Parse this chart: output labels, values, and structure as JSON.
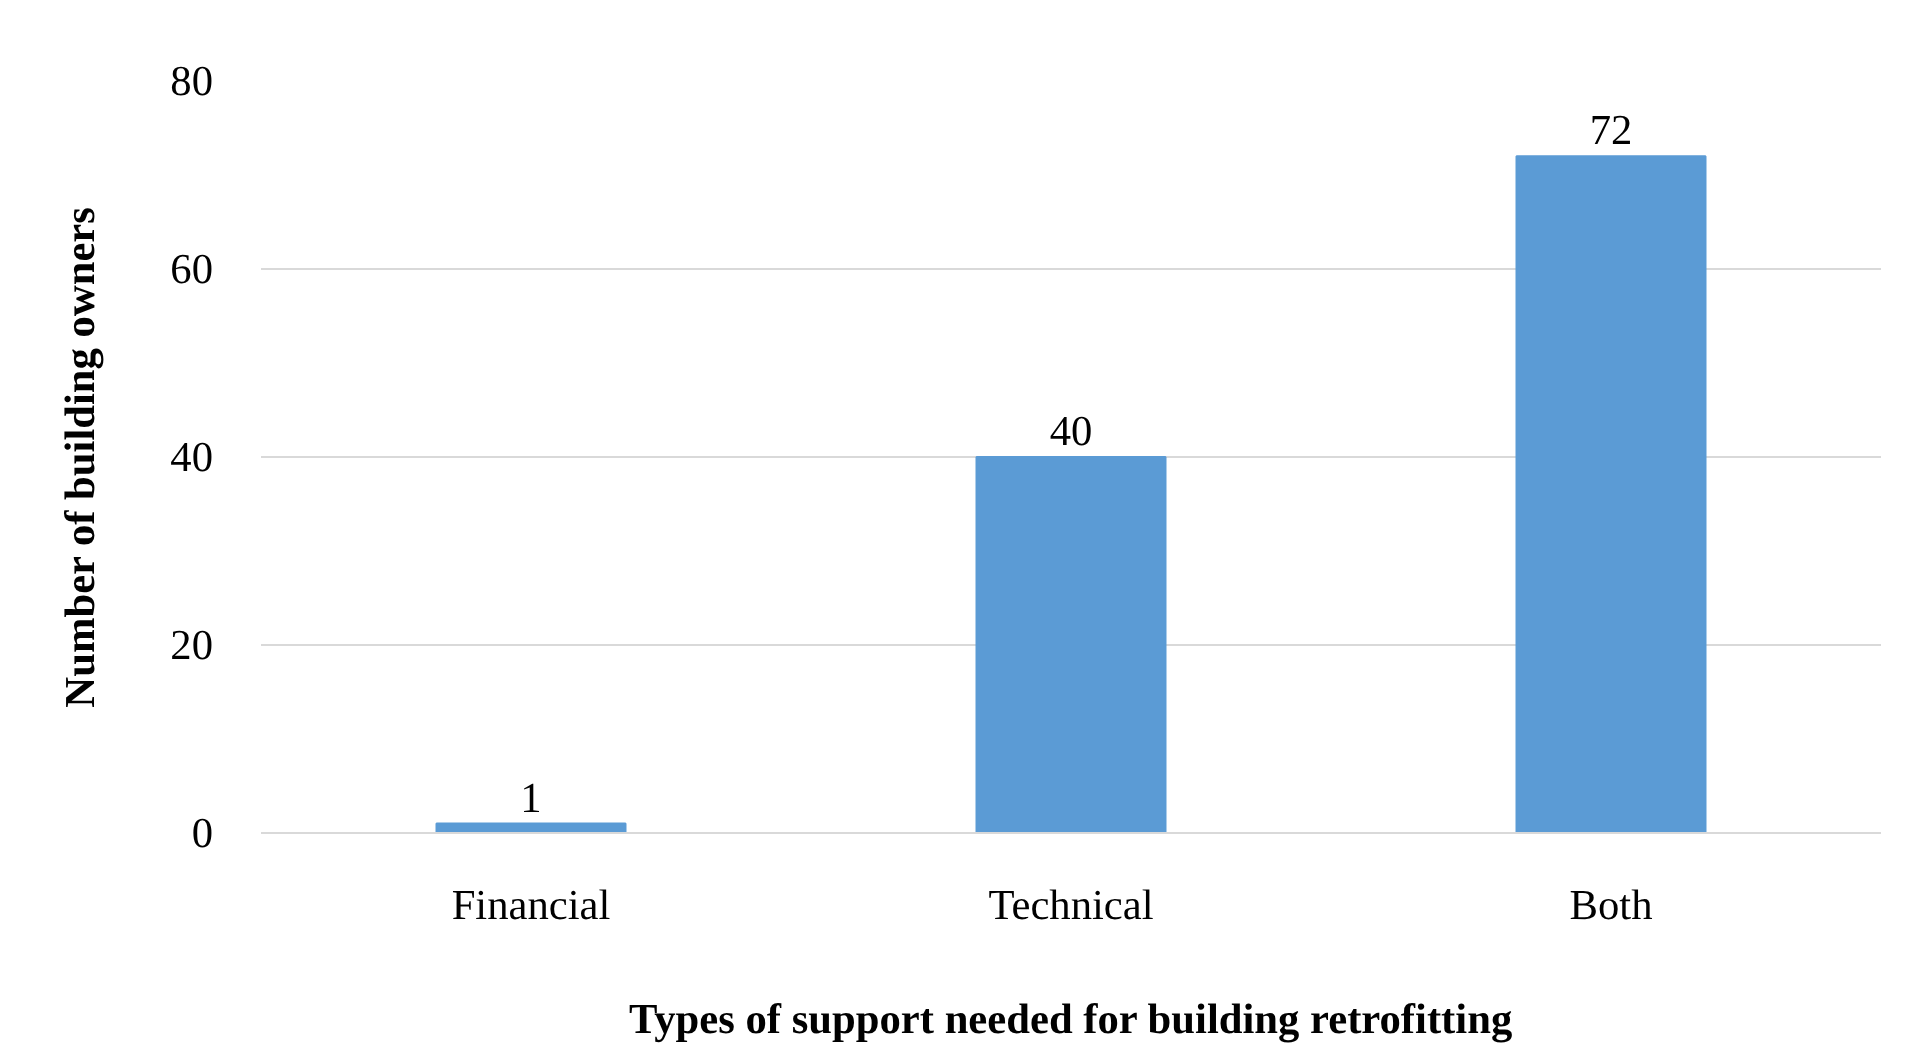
{
  "chart_data": {
    "type": "bar",
    "xlabel": "Types of support needed for building retrofitting",
    "ylabel": "Number of building owners",
    "categories": [
      "Financial",
      "Technical",
      "Both"
    ],
    "values": [
      1,
      40,
      72
    ],
    "color": "#5b9bd5",
    "ylim": [
      0,
      80
    ],
    "yticks": [
      0,
      20,
      40,
      60,
      80
    ],
    "grid": "y",
    "data_labels": true
  }
}
